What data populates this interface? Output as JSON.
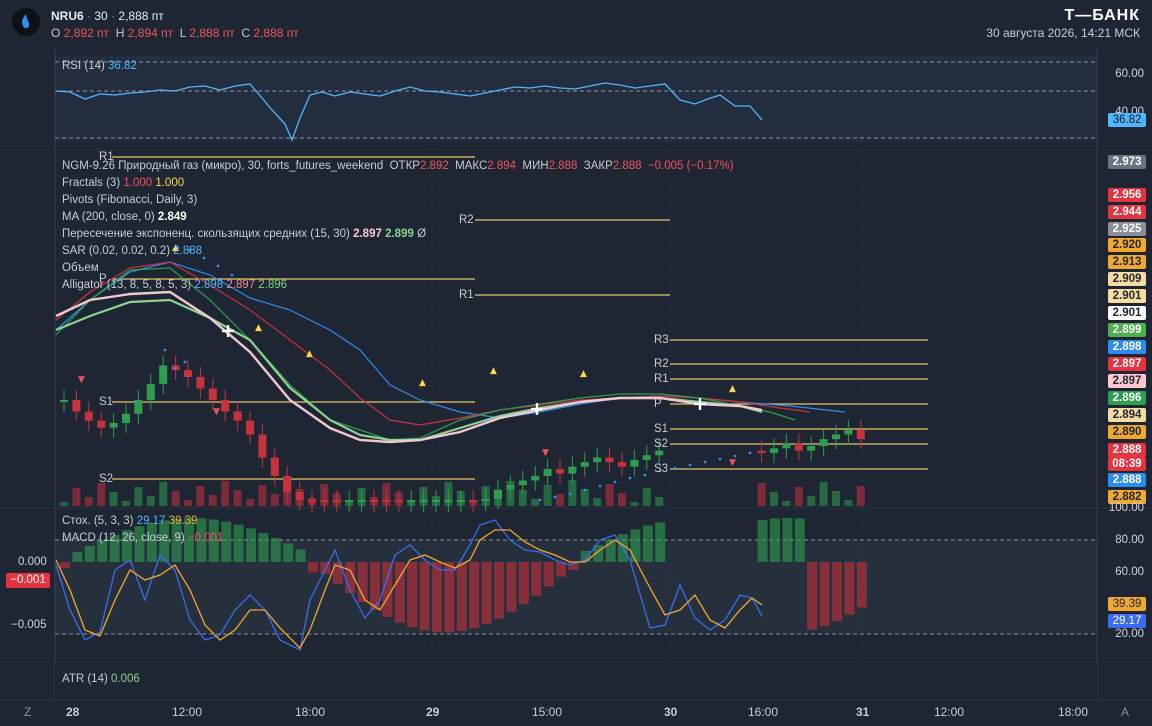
{
  "header": {
    "symbol": "NRU6",
    "timeframe": "30",
    "last_price": "2,888 пт",
    "ohlc": [
      {
        "k": "O",
        "v": "2,892 пт"
      },
      {
        "k": "H",
        "v": "2,894 пт"
      },
      {
        "k": "L",
        "v": "2,888 пт"
      },
      {
        "k": "C",
        "v": "2,888 пт"
      }
    ],
    "brand": "Т—БАНК",
    "datetime": "30 августа 2026, 14:21 МСК"
  },
  "rsi": {
    "label": "RSI (14)",
    "value": "36.82",
    "axis": [
      "60.00",
      "40.00"
    ],
    "tag": "36.82"
  },
  "main_legend": {
    "title": "NGM-9.26 Природный газ (микро), 30, forts_futures_weekend",
    "otkr_k": "ОТКР",
    "otkr_v": "2.892",
    "maks_k": "МАКС",
    "maks_v": "2.894",
    "min_k": "МИН",
    "min_v": "2.888",
    "zakr_k": "ЗАКР",
    "zakr_v": "2.888",
    "change": "−0.005 (−0.17%)",
    "fractals": "Fractals (3)",
    "fractals_v1": "1.000",
    "fractals_v2": "1.000",
    "pivots": "Pivots (Fibonacci, Daily, 3)",
    "ma": "MA (200, close, 0)",
    "ma_v": "2.849",
    "cross": "Пересечение экспоненц. скользящих средних (15, 30)",
    "cross_v1": "2.897",
    "cross_v2": "2.899",
    "cross_v3": "Ø",
    "sar": "SAR (0.02, 0.02, 0.2)",
    "sar_v": "2.888",
    "volume": "Объем",
    "alligator": "Alligator (13, 8, 5, 8, 5, 3)",
    "all_v1": "2.898",
    "all_v2": "2.897",
    "all_v3": "2.896"
  },
  "price_tags": [
    {
      "t": "2.973",
      "bg": "#6b7280",
      "fg": "#ffffff"
    },
    {
      "t": "2.956",
      "bg": "#e5333f",
      "fg": "#ffffff"
    },
    {
      "t": "2.944",
      "bg": "#e5333f",
      "fg": "#ffffff"
    },
    {
      "t": "2.925",
      "bg": "#8a8f98",
      "fg": "#ffffff"
    },
    {
      "t": "2.920",
      "bg": "#f0a830",
      "fg": "#1e2633"
    },
    {
      "t": "2.913",
      "bg": "#f0a830",
      "fg": "#1e2633"
    },
    {
      "t": "2.909",
      "bg": "#f5dca0",
      "fg": "#1e2633"
    },
    {
      "t": "2.901",
      "bg": "#f5dca0",
      "fg": "#1e2633"
    },
    {
      "t": "2.901",
      "bg": "#ffffff",
      "fg": "#1e2633"
    },
    {
      "t": "2.899",
      "bg": "#4caf50",
      "fg": "#ffffff"
    },
    {
      "t": "2.898",
      "bg": "#2d8cf0",
      "fg": "#ffffff"
    },
    {
      "t": "2.897",
      "bg": "#e5333f",
      "fg": "#ffffff"
    },
    {
      "t": "2.897",
      "bg": "#ffc7d0",
      "fg": "#1e2633"
    },
    {
      "t": "2.896",
      "bg": "#2e9e4f",
      "fg": "#ffffff"
    },
    {
      "t": "2.894",
      "bg": "#f5dca0",
      "fg": "#1e2633"
    },
    {
      "t": "2.890",
      "bg": "#f0a830",
      "fg": "#1e2633"
    },
    {
      "t": "2.888",
      "bg": "#e5333f",
      "fg": "#ffffff"
    },
    {
      "t": "08:39",
      "bg": "#e5333f",
      "fg": "#ffffff"
    },
    {
      "t": "2.888",
      "bg": "#2d8cf0",
      "fg": "#ffffff"
    },
    {
      "t": "2.882",
      "bg": "#f0a830",
      "fg": "#1e2633"
    }
  ],
  "volume_axis": "100.00",
  "pivot_labels": {
    "d1": [
      "R1",
      "P",
      "S1",
      "S2"
    ],
    "d2": [
      "R2",
      "R1"
    ],
    "d3": [
      "R3",
      "R2",
      "R1",
      "P",
      "S1",
      "S2",
      "S3"
    ]
  },
  "stoch": {
    "label": "Стох. (5, 3, 3)",
    "v1": "29.17",
    "v2": "39.39",
    "axis": [
      "80.00",
      "60.00",
      "20.00"
    ],
    "tag1": "39.39",
    "tag2": "29.17"
  },
  "macd": {
    "label": "MACD (12, 26, close, 9)",
    "v": "−0.001",
    "axis": [
      "0.000",
      "−0.005"
    ],
    "tag": "−0.001"
  },
  "atr": {
    "label": "ATR (14)",
    "v": "0.006"
  },
  "xaxis": {
    "left_icon": "Z",
    "right_icon": "A",
    "ticks": [
      {
        "t": "28",
        "bold": true
      },
      {
        "t": "12:00"
      },
      {
        "t": "18:00"
      },
      {
        "t": "29",
        "bold": true
      },
      {
        "t": "15:00"
      },
      {
        "t": "30",
        "bold": true
      },
      {
        "t": "16:00"
      },
      {
        "t": "31",
        "bold": true
      },
      {
        "t": "12:00"
      },
      {
        "t": "18:00"
      }
    ]
  },
  "colors": {
    "up": "#2e9e4f",
    "down": "#c8323c",
    "rsi": "#4fb7ff",
    "pivot": "#e8c26a",
    "stoch_k": "#3b6cf0",
    "stoch_d": "#f0a830"
  },
  "chart_data": {
    "type": "candlestick",
    "note_series": "close values by bar",
    "closes": [
      2.905,
      2.9,
      2.896,
      2.893,
      2.895,
      2.899,
      2.905,
      2.912,
      2.92,
      2.918,
      2.915,
      2.91,
      2.905,
      2.9,
      2.896,
      2.89,
      2.88,
      2.872,
      2.865,
      2.858,
      2.85,
      2.846,
      2.842,
      2.845,
      2.85,
      2.846,
      2.842,
      2.838,
      2.843,
      2.847,
      2.852,
      2.856,
      2.86,
      2.858,
      2.862,
      2.866,
      2.868,
      2.87,
      2.872,
      2.875,
      2.873,
      2.876,
      2.878,
      2.88,
      2.878,
      2.876,
      2.879,
      2.881,
      2.883,
      2.882,
      2.884,
      2.886,
      2.883,
      2.885,
      2.888,
      2.89,
      2.892,
      2.888
    ]
  }
}
